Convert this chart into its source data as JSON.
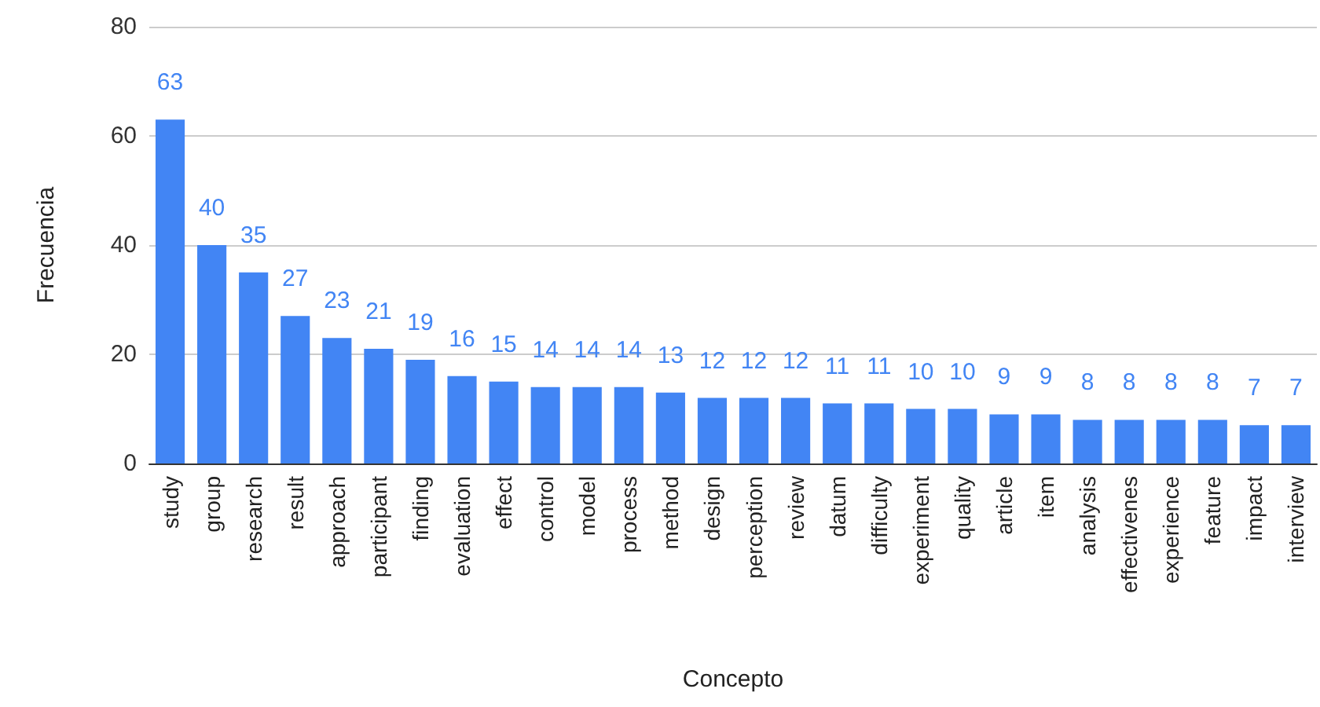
{
  "chart_data": {
    "type": "bar",
    "xlabel": "Concepto",
    "ylabel": "Frecuencia",
    "categories": [
      "study",
      "group",
      "research",
      "result",
      "approach",
      "participant",
      "finding",
      "evaluation",
      "effect",
      "control",
      "model",
      "process",
      "method",
      "design",
      "perception",
      "review",
      "datum",
      "difficulty",
      "experiment",
      "quality",
      "article",
      "item",
      "analysis",
      "effectivenes",
      "experience",
      "feature",
      "impact",
      "interview"
    ],
    "values": [
      63,
      40,
      35,
      27,
      23,
      21,
      19,
      16,
      15,
      14,
      14,
      14,
      13,
      12,
      12,
      12,
      11,
      11,
      10,
      10,
      9,
      9,
      8,
      8,
      8,
      8,
      7,
      7
    ],
    "color": "#4285f4",
    "ylim": [
      0,
      80
    ],
    "yticks": [
      0,
      20,
      40,
      60,
      80
    ],
    "grid": "y",
    "data_labels": true
  }
}
